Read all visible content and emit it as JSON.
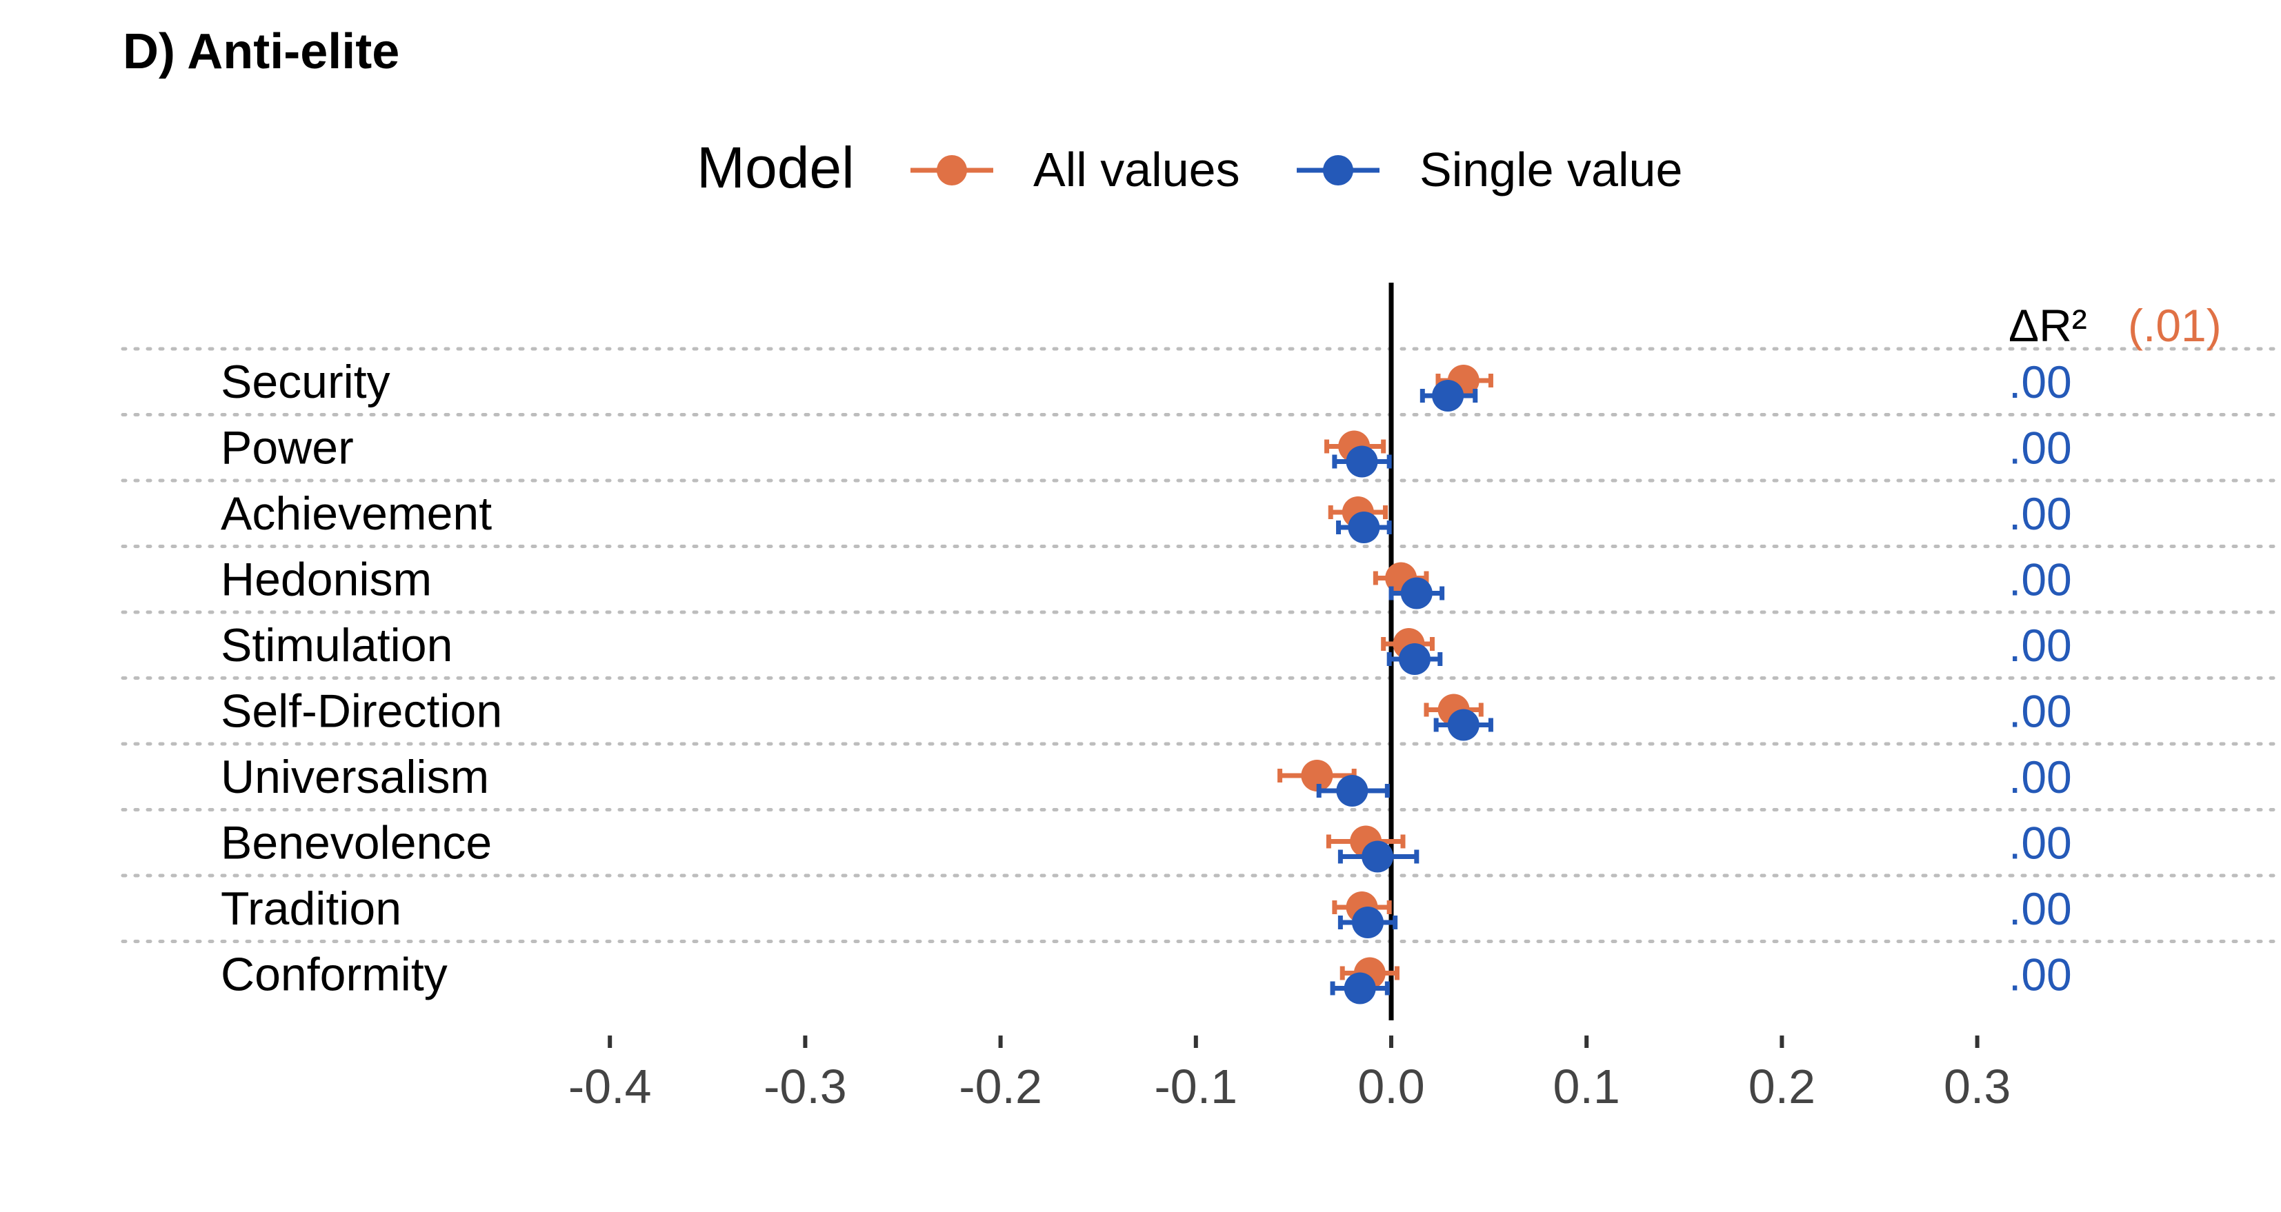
{
  "chart_data": {
    "type": "dot-whisker",
    "title": "D) Anti-elite",
    "legend": {
      "title": "Model",
      "position": "top",
      "entries": [
        {
          "name": "All values",
          "color": "#E07145"
        },
        {
          "name": "Single value",
          "color": "#2459B8"
        }
      ]
    },
    "delta_r2": {
      "header_label": "ΔR²",
      "header_value": "(.01)",
      "header_value_color": "#E07145",
      "row_value_color": "#2459B8"
    },
    "xlim": [
      -0.4,
      0.3
    ],
    "xticks": [
      {
        "value": -0.4,
        "label": "-0.4"
      },
      {
        "value": -0.3,
        "label": "-0.3"
      },
      {
        "value": -0.2,
        "label": "-0.2"
      },
      {
        "value": -0.1,
        "label": "-0.1"
      },
      {
        "value": 0.0,
        "label": "0.0"
      },
      {
        "value": 0.1,
        "label": "0.1"
      },
      {
        "value": 0.2,
        "label": "0.2"
      },
      {
        "value": 0.3,
        "label": "0.3"
      }
    ],
    "reference_line": 0,
    "grid": "horizontal dotted",
    "categories": [
      "Security",
      "Power",
      "Achievement",
      "Hedonism",
      "Stimulation",
      "Self-Direction",
      "Universalism",
      "Benevolence",
      "Tradition",
      "Conformity"
    ],
    "delta_r2_values": [
      ".00",
      ".00",
      ".00",
      ".00",
      ".00",
      ".00",
      ".00",
      ".00",
      ".00",
      ".00"
    ],
    "series": [
      {
        "name": "All values",
        "color": "#E07145",
        "estimate": [
          0.037,
          -0.019,
          -0.017,
          0.005,
          0.009,
          0.032,
          -0.038,
          -0.013,
          -0.015,
          -0.011
        ],
        "lower": [
          0.024,
          -0.033,
          -0.031,
          -0.008,
          -0.004,
          0.018,
          -0.057,
          -0.032,
          -0.029,
          -0.025
        ],
        "upper": [
          0.051,
          -0.004,
          -0.003,
          0.018,
          0.021,
          0.046,
          -0.019,
          0.006,
          -0.001,
          0.003
        ]
      },
      {
        "name": "Single value",
        "color": "#2459B8",
        "estimate": [
          0.029,
          -0.015,
          -0.014,
          0.013,
          0.012,
          0.037,
          -0.02,
          -0.007,
          -0.012,
          -0.016
        ],
        "lower": [
          0.016,
          -0.029,
          -0.027,
          0.0,
          -0.001,
          0.023,
          -0.037,
          -0.026,
          -0.026,
          -0.03
        ],
        "upper": [
          0.043,
          -0.001,
          -0.001,
          0.026,
          0.025,
          0.051,
          -0.002,
          0.013,
          0.002,
          -0.002
        ]
      }
    ]
  }
}
